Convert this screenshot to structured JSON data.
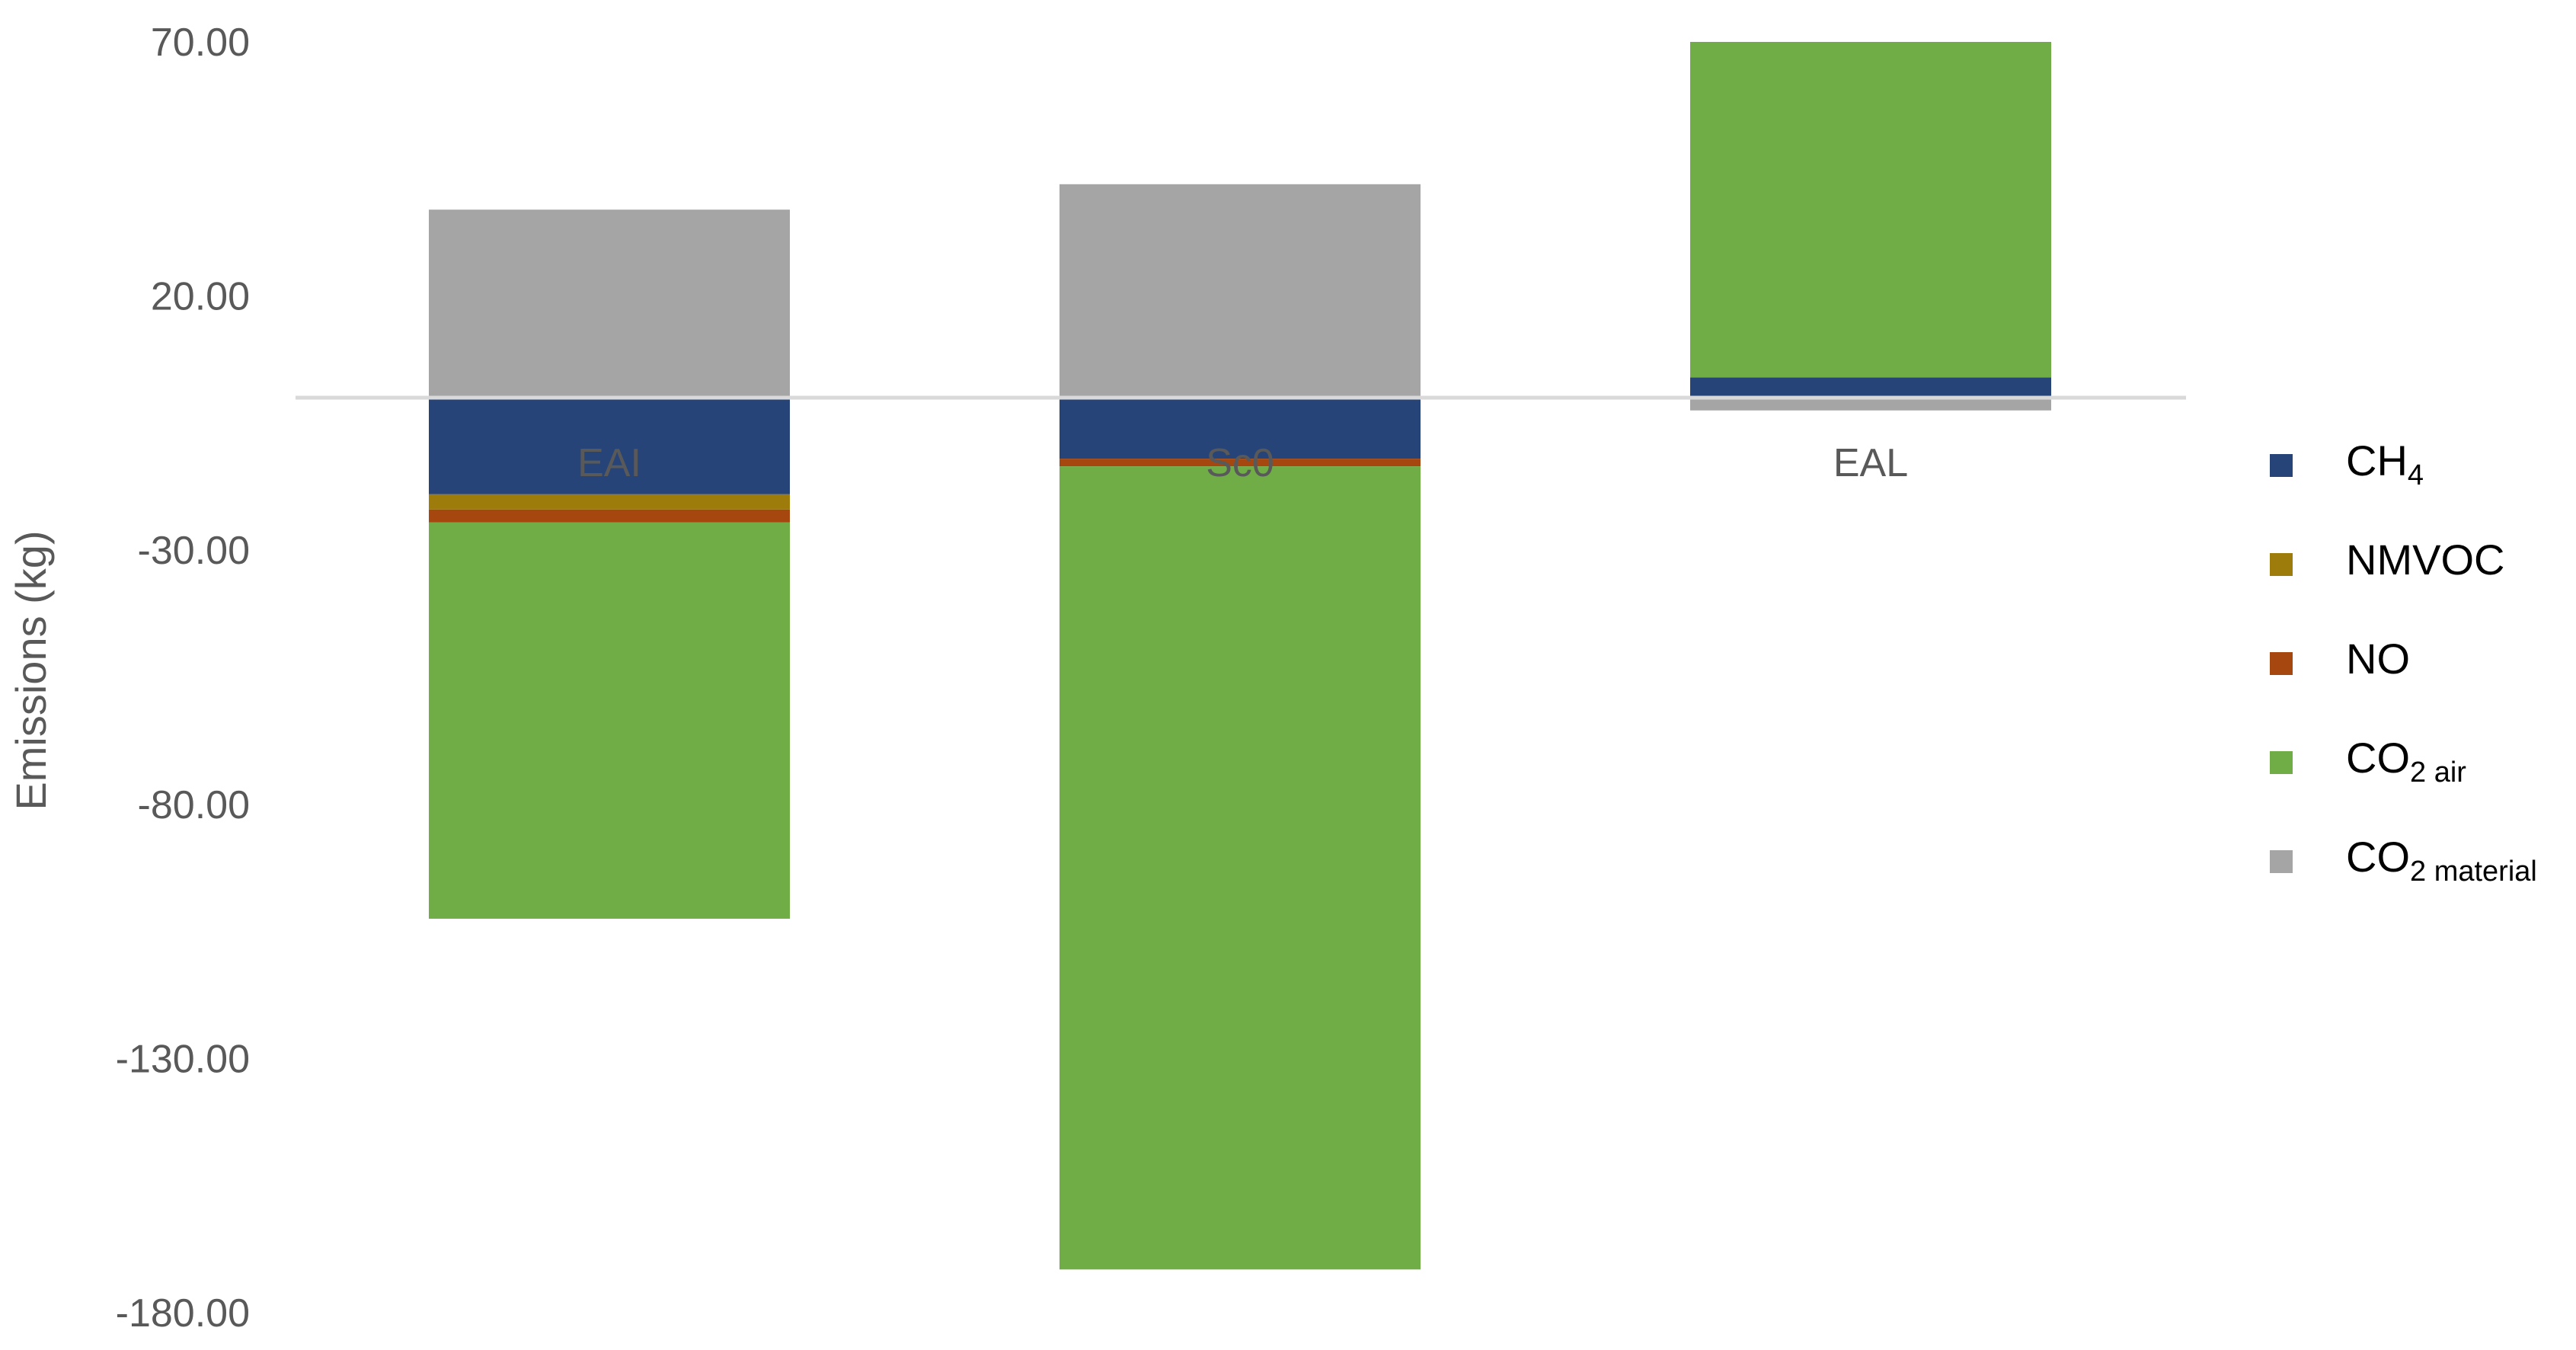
{
  "chart_data": {
    "type": "bar",
    "stacked": true,
    "categories": [
      "EAI",
      "Sc0",
      "EAL"
    ],
    "ylabel": "Emissions (kg)",
    "ylim": [
      -180,
      70
    ],
    "yticks": [
      "70.00",
      "20.00",
      "-30.00",
      "-80.00",
      "-130.00",
      "-180.00"
    ],
    "ytick_values": [
      70,
      20,
      -30,
      -80,
      -130,
      -180
    ],
    "grid": false,
    "legend_position": "right",
    "series": [
      {
        "name": "CH4",
        "color": "#264478",
        "values": [
          -19,
          -12,
          4
        ]
      },
      {
        "name": "NMVOC",
        "color": "#9E7C0C",
        "values": [
          -3,
          0,
          0
        ]
      },
      {
        "name": "NO",
        "color": "#A5470F",
        "values": [
          -2.5,
          -1.5,
          0
        ]
      },
      {
        "name": "CO2 air",
        "color": "#70AD47",
        "values": [
          -78,
          -158,
          66
        ]
      },
      {
        "name": "CO2 material",
        "color": "#A5A5A5",
        "values": [
          37,
          42,
          -2.5
        ]
      }
    ]
  },
  "legend": {
    "items": [
      {
        "main": "CH",
        "sub": "4",
        "color": "#264478"
      },
      {
        "main": "NMVOC",
        "sub": "",
        "color": "#9E7C0C"
      },
      {
        "main": "NO",
        "sub": "",
        "color": "#A5470F"
      },
      {
        "main": "CO",
        "sub": "2 air",
        "color": "#70AD47"
      },
      {
        "main": "CO",
        "sub": "2 material",
        "color": "#A5A5A5"
      }
    ]
  }
}
